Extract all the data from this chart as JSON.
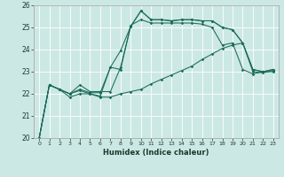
{
  "xlabel": "Humidex (Indice chaleur)",
  "bg_color": "#cce8e4",
  "line_color": "#1a6b5a",
  "xlim": [
    -0.5,
    23.5
  ],
  "ylim": [
    20,
    26
  ],
  "xticks": [
    0,
    1,
    2,
    3,
    4,
    5,
    6,
    7,
    8,
    9,
    10,
    11,
    12,
    13,
    14,
    15,
    16,
    17,
    18,
    19,
    20,
    21,
    22,
    23
  ],
  "yticks": [
    20,
    21,
    22,
    23,
    24,
    25,
    26
  ],
  "series": [
    [
      20.0,
      22.4,
      22.2,
      21.85,
      22.0,
      22.0,
      21.9,
      23.2,
      23.1,
      25.1,
      25.35,
      25.2,
      25.2,
      25.2,
      25.2,
      25.2,
      25.15,
      25.0,
      24.2,
      24.3,
      23.1,
      22.9,
      23.0,
      23.0
    ],
    [
      20.0,
      22.4,
      22.2,
      22.0,
      22.4,
      22.1,
      22.1,
      22.1,
      23.2,
      25.05,
      25.75,
      25.35,
      25.35,
      25.3,
      25.35,
      25.35,
      25.3,
      25.3,
      25.0,
      24.9,
      24.3,
      23.1,
      23.0,
      23.1
    ],
    [
      20.0,
      22.4,
      22.2,
      22.0,
      22.2,
      22.05,
      22.05,
      23.2,
      23.95,
      25.05,
      25.75,
      25.35,
      25.35,
      25.3,
      25.35,
      25.35,
      25.3,
      25.3,
      25.0,
      24.9,
      24.3,
      23.1,
      23.0,
      23.1
    ],
    [
      20.0,
      22.4,
      22.2,
      22.0,
      22.15,
      22.0,
      21.85,
      21.85,
      22.0,
      22.1,
      22.2,
      22.45,
      22.65,
      22.85,
      23.05,
      23.25,
      23.55,
      23.8,
      24.05,
      24.2,
      24.3,
      23.0,
      22.95,
      23.05
    ]
  ]
}
